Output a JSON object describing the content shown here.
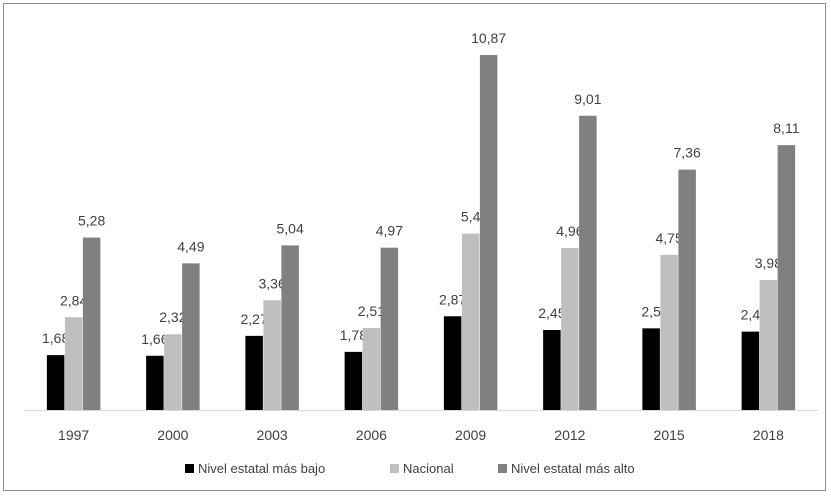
{
  "chart_data": {
    "type": "bar",
    "categories": [
      "1997",
      "2000",
      "2003",
      "2006",
      "2009",
      "2012",
      "2015",
      "2018"
    ],
    "series": [
      {
        "name": "Nivel estatal más bajo",
        "color": "#000000",
        "values": [
          1.68,
          1.66,
          2.27,
          1.78,
          2.87,
          2.45,
          2.5,
          2.4
        ],
        "labels": [
          "1,68",
          "1,66",
          "2,27",
          "1,78",
          "2,87",
          "2,45",
          "2,5",
          "2,4"
        ]
      },
      {
        "name": "Nacional",
        "color": "#bfbfbf",
        "values": [
          2.84,
          2.32,
          3.36,
          2.51,
          5.4,
          4.96,
          4.75,
          3.98
        ],
        "labels": [
          "2,84",
          "2,32",
          "3,36",
          "2,51",
          "5,4",
          "4,96",
          "4,75",
          "3,98"
        ]
      },
      {
        "name": "Nivel estatal más alto",
        "color": "#808080",
        "values": [
          5.28,
          4.49,
          5.04,
          4.97,
          10.87,
          9.01,
          7.36,
          8.11
        ],
        "labels": [
          "5,28",
          "4,49",
          "5,04",
          "4,97",
          "10,87",
          "9,01",
          "7,36",
          "8,11"
        ]
      }
    ],
    "ylim": [
      0,
      11.5
    ],
    "grid": false,
    "legend_position": "bottom"
  }
}
